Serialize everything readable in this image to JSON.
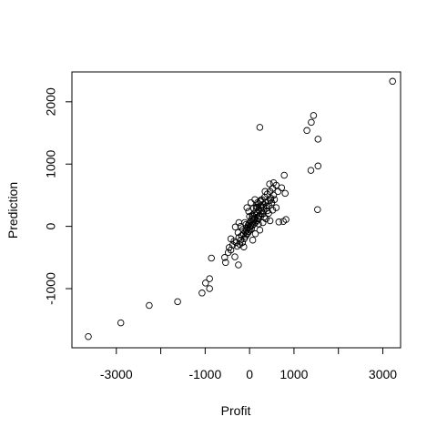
{
  "chart_data": {
    "type": "scatter",
    "title": "",
    "xlabel": "Profit",
    "ylabel": "Prediction",
    "xlim": [
      -4000,
      3400
    ],
    "ylim": [
      -1950,
      2480
    ],
    "grid": false,
    "legend": "none",
    "marker": "open-circle",
    "colors": {
      "point": "#000000",
      "axis": "#000000",
      "background": "#ffffff"
    },
    "x_ticks": [
      {
        "value": -3000,
        "label": "-3000"
      },
      {
        "value": -2000,
        "label": ""
      },
      {
        "value": -1000,
        "label": "-1000"
      },
      {
        "value": 0,
        "label": "0"
      },
      {
        "value": 1000,
        "label": "1000"
      },
      {
        "value": 2000,
        "label": ""
      },
      {
        "value": 3000,
        "label": "3000"
      }
    ],
    "y_ticks": [
      {
        "value": -1000,
        "label": "-1000"
      },
      {
        "value": 0,
        "label": "0"
      },
      {
        "value": 1000,
        "label": "1000"
      },
      {
        "value": 2000,
        "label": "2000"
      }
    ],
    "points": [
      [
        -3630,
        -1770
      ],
      [
        -2900,
        -1550
      ],
      [
        -2260,
        -1270
      ],
      [
        -1620,
        -1210
      ],
      [
        -1070,
        -1070
      ],
      [
        -990,
        -910
      ],
      [
        -900,
        -840
      ],
      [
        -900,
        -1000
      ],
      [
        -860,
        -510
      ],
      [
        -560,
        -500
      ],
      [
        -540,
        -580
      ],
      [
        -480,
        -420
      ],
      [
        -460,
        -340
      ],
      [
        -420,
        -380
      ],
      [
        -380,
        -300
      ],
      [
        -350,
        -240
      ],
      [
        -330,
        -490
      ],
      [
        -300,
        -260
      ],
      [
        -280,
        -320
      ],
      [
        -250,
        -620
      ],
      [
        -240,
        -180
      ],
      [
        -220,
        -290
      ],
      [
        -200,
        -220
      ],
      [
        -180,
        -150
      ],
      [
        -160,
        -260
      ],
      [
        -140,
        -120
      ],
      [
        -120,
        -200
      ],
      [
        -100,
        -90
      ],
      [
        -90,
        -160
      ],
      [
        -70,
        -60
      ],
      [
        -60,
        -130
      ],
      [
        -50,
        -30
      ],
      [
        -40,
        -110
      ],
      [
        -30,
        20
      ],
      [
        -20,
        -80
      ],
      [
        -10,
        40
      ],
      [
        0,
        -20
      ],
      [
        10,
        -60
      ],
      [
        20,
        80
      ],
      [
        30,
        10
      ],
      [
        40,
        -40
      ],
      [
        50,
        120
      ],
      [
        60,
        60
      ],
      [
        70,
        20
      ],
      [
        80,
        160
      ],
      [
        90,
        90
      ],
      [
        100,
        40
      ],
      [
        110,
        200
      ],
      [
        120,
        130
      ],
      [
        130,
        60
      ],
      [
        140,
        240
      ],
      [
        150,
        180
      ],
      [
        160,
        90
      ],
      [
        170,
        300
      ],
      [
        180,
        220
      ],
      [
        190,
        120
      ],
      [
        200,
        360
      ],
      [
        210,
        260
      ],
      [
        220,
        170
      ],
      [
        240,
        400
      ],
      [
        250,
        300
      ],
      [
        260,
        200
      ],
      [
        280,
        430
      ],
      [
        300,
        350
      ],
      [
        320,
        250
      ],
      [
        340,
        470
      ],
      [
        360,
        380
      ],
      [
        380,
        290
      ],
      [
        400,
        520
      ],
      [
        420,
        410
      ],
      [
        440,
        330
      ],
      [
        460,
        560
      ],
      [
        480,
        450
      ],
      [
        500,
        380
      ],
      [
        520,
        610
      ],
      [
        540,
        500
      ],
      [
        560,
        430
      ],
      [
        600,
        660
      ],
      [
        640,
        560
      ],
      [
        660,
        70
      ],
      [
        720,
        620
      ],
      [
        760,
        80
      ],
      [
        780,
        820
      ],
      [
        800,
        530
      ],
      [
        820,
        110
      ],
      [
        -150,
        -50
      ],
      [
        -80,
        30
      ],
      [
        60,
        180
      ],
      [
        150,
        310
      ],
      [
        250,
        420
      ],
      [
        350,
        560
      ],
      [
        450,
        680
      ],
      [
        540,
        700
      ],
      [
        -320,
        -10
      ],
      [
        -240,
        60
      ],
      [
        -60,
        300
      ],
      [
        30,
        380
      ],
      [
        120,
        430
      ],
      [
        250,
        330
      ],
      [
        400,
        250
      ],
      [
        200,
        40
      ],
      [
        330,
        150
      ],
      [
        460,
        90
      ],
      [
        -200,
        0
      ],
      [
        -110,
        60
      ],
      [
        0,
        160
      ],
      [
        90,
        290
      ],
      [
        180,
        380
      ],
      [
        290,
        200
      ],
      [
        370,
        120
      ],
      [
        430,
        210
      ],
      [
        -420,
        -200
      ],
      [
        -260,
        -100
      ],
      [
        -20,
        240
      ],
      [
        100,
        120
      ],
      [
        210,
        160
      ],
      [
        300,
        60
      ],
      [
        -130,
        -330
      ],
      [
        70,
        -220
      ],
      [
        130,
        -120
      ],
      [
        230,
        -60
      ],
      [
        310,
        310
      ],
      [
        390,
        330
      ],
      [
        470,
        420
      ],
      [
        520,
        260
      ],
      [
        600,
        300
      ],
      [
        230,
        1590
      ],
      [
        1290,
        1540
      ],
      [
        1390,
        1670
      ],
      [
        1440,
        1780
      ],
      [
        1540,
        1400
      ],
      [
        1540,
        970
      ],
      [
        1380,
        900
      ],
      [
        1530,
        270
      ],
      [
        3220,
        2330
      ]
    ]
  }
}
